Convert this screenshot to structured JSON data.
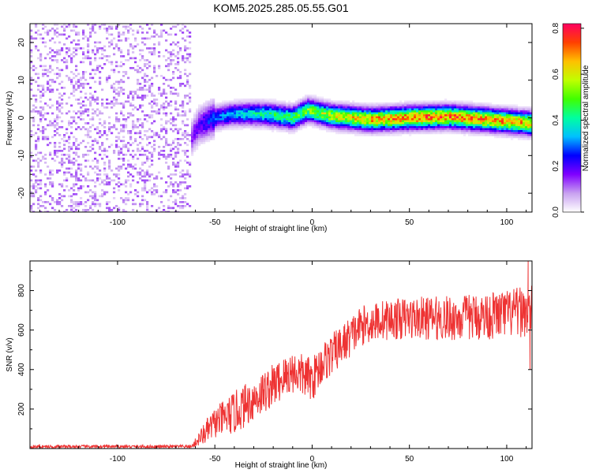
{
  "title": "KOM5.2025.285.05.55.G01",
  "chart_data": [
    {
      "type": "heatmap",
      "name": "spectrogram",
      "xlabel": "Height of straight line (km)",
      "ylabel": "Frequency (Hz)",
      "xlim": [
        -145,
        113
      ],
      "ylim": [
        -25,
        25
      ],
      "xticks": [
        -100,
        -50,
        0,
        50,
        100
      ],
      "xtick_labels": [
        "-100",
        "-50",
        "0",
        "50",
        "100"
      ],
      "yticks": [
        -20,
        -10,
        0,
        10,
        20
      ],
      "ytick_labels": [
        "-20",
        "-10",
        "0",
        "10",
        "20"
      ],
      "colorbar": {
        "label": "Normalized spectral amplitude",
        "range": [
          0,
          0.82
        ],
        "ticks": [
          0.0,
          0.2,
          0.4,
          0.6,
          0.8
        ],
        "tick_labels": [
          "0.0",
          "0.2",
          "0.4",
          "0.6",
          "0.8"
        ],
        "colors": [
          "#ffffff",
          "#c8a0f0",
          "#8000ff",
          "#0000ff",
          "#00c0ff",
          "#00ffa0",
          "#40ff00",
          "#c0ff00",
          "#ffc000",
          "#ff4000",
          "#ff0060"
        ]
      },
      "noise_region_x": [
        -145,
        -62
      ],
      "noise_amplitude": 0.1,
      "signal_track": [
        {
          "x": -63,
          "freq": -6
        },
        {
          "x": -58,
          "freq": -2
        },
        {
          "x": -50,
          "freq": 0
        },
        {
          "x": -40,
          "freq": 1
        },
        {
          "x": -25,
          "freq": 1
        },
        {
          "x": -10,
          "freq": 0
        },
        {
          "x": -2,
          "freq": 2
        },
        {
          "x": 10,
          "freq": 0.5
        },
        {
          "x": 30,
          "freq": -0.5
        },
        {
          "x": 50,
          "freq": 0
        },
        {
          "x": 70,
          "freq": 0.3
        },
        {
          "x": 90,
          "freq": -0.5
        },
        {
          "x": 113,
          "freq": -1.5
        }
      ],
      "signal_peak_amplitude": [
        {
          "x": -63,
          "amp": 0.15
        },
        {
          "x": -50,
          "amp": 0.3
        },
        {
          "x": -20,
          "amp": 0.45
        },
        {
          "x": 0,
          "amp": 0.55
        },
        {
          "x": 30,
          "amp": 0.7
        },
        {
          "x": 50,
          "amp": 0.75
        },
        {
          "x": 80,
          "amp": 0.75
        },
        {
          "x": 113,
          "amp": 0.7
        }
      ]
    },
    {
      "type": "line",
      "name": "snr",
      "series_name": "SNR",
      "color": "#ee3333",
      "xlabel": "Height of straight line (km)",
      "ylabel": "SNR (v/v)",
      "xlim": [
        -145,
        113
      ],
      "ylim": [
        0,
        950
      ],
      "xticks": [
        -100,
        -50,
        0,
        50,
        100
      ],
      "xtick_labels": [
        "-100",
        "-50",
        "0",
        "50",
        "100"
      ],
      "yticks": [
        200,
        400,
        600,
        800
      ],
      "ytick_labels": [
        "200",
        "400",
        "600",
        "800"
      ],
      "trend": [
        {
          "x": -145,
          "snr": 10
        },
        {
          "x": -62,
          "snr": 10
        },
        {
          "x": -57,
          "snr": 60
        },
        {
          "x": -50,
          "snr": 130
        },
        {
          "x": -40,
          "snr": 180
        },
        {
          "x": -30,
          "snr": 250
        },
        {
          "x": -20,
          "snr": 320
        },
        {
          "x": -10,
          "snr": 390
        },
        {
          "x": 0,
          "snr": 350
        },
        {
          "x": 5,
          "snr": 430
        },
        {
          "x": 15,
          "snr": 520
        },
        {
          "x": 25,
          "snr": 620
        },
        {
          "x": 35,
          "snr": 650
        },
        {
          "x": 50,
          "snr": 660
        },
        {
          "x": 75,
          "snr": 660
        },
        {
          "x": 100,
          "snr": 680
        },
        {
          "x": 113,
          "snr": 700
        }
      ],
      "noise_spread": [
        {
          "x": -145,
          "amp": 8
        },
        {
          "x": -62,
          "amp": 8
        },
        {
          "x": -55,
          "amp": 60
        },
        {
          "x": -40,
          "amp": 110
        },
        {
          "x": 0,
          "amp": 110
        },
        {
          "x": 30,
          "amp": 100
        },
        {
          "x": 113,
          "amp": 130
        }
      ],
      "spikes": [
        {
          "x": 111,
          "snr": 950
        },
        {
          "x": 112,
          "snr": 400
        }
      ]
    }
  ]
}
